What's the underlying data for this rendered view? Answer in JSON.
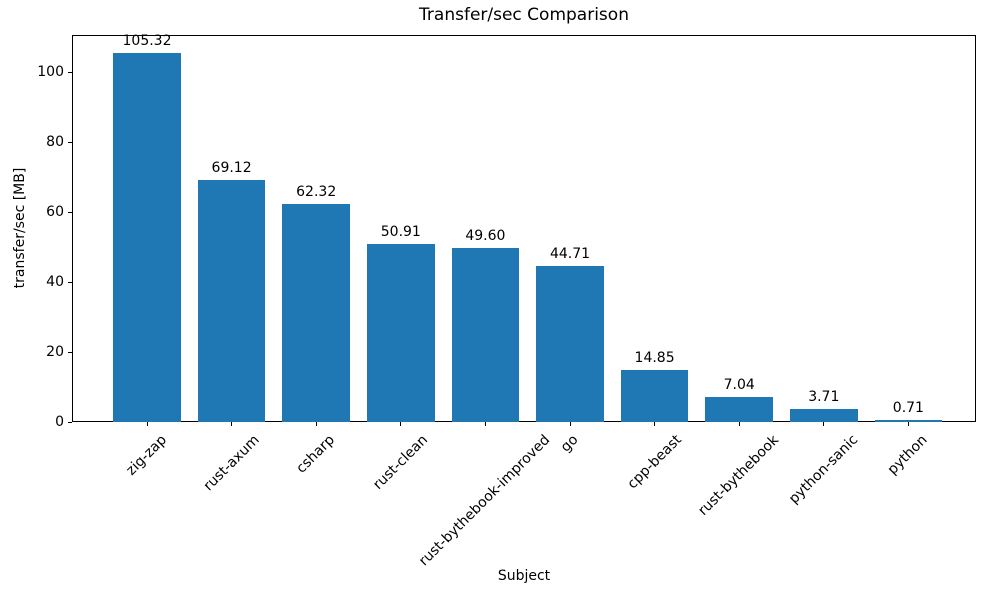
{
  "chart_data": {
    "type": "bar",
    "title": "Transfer/sec Comparison",
    "xlabel": "Subject",
    "ylabel": "transfer/sec [MB]",
    "categories": [
      "zig-zap",
      "rust-axum",
      "csharp",
      "rust-clean",
      "rust-bythebook-improved",
      "go",
      "cpp-beast",
      "rust-bythebook",
      "python-sanic",
      "python"
    ],
    "values": [
      105.32,
      69.12,
      62.32,
      50.91,
      49.6,
      44.71,
      14.85,
      7.04,
      3.71,
      0.71
    ],
    "bar_labels": [
      "105.32",
      "69.12",
      "62.32",
      "50.91",
      "49.60",
      "44.71",
      "14.85",
      "7.04",
      "3.71",
      "0.71"
    ],
    "yticks": [
      0,
      20,
      40,
      60,
      80,
      100
    ],
    "ylim": [
      0,
      110.59
    ],
    "x_tick_rotation_deg": 45,
    "grid": false,
    "legend": null,
    "bar_color": "#1f77b4",
    "text_color": "#000000",
    "background_color": "#ffffff"
  }
}
